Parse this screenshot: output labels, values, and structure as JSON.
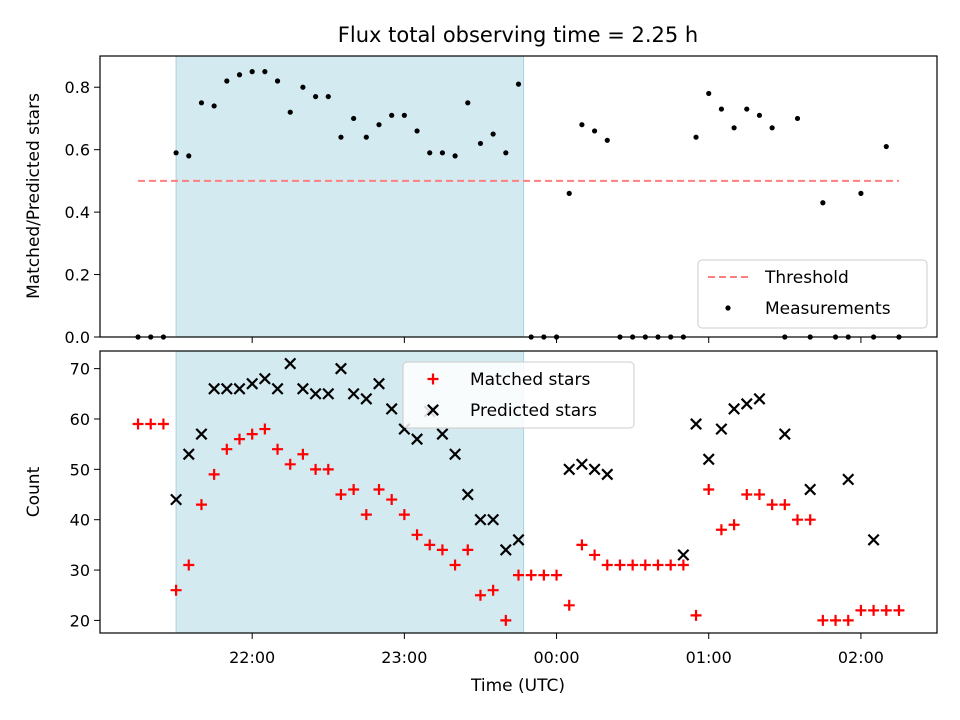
{
  "chart_data": [
    {
      "type": "scatter",
      "title": "Flux total observing time = 2.25 h",
      "xlabel": "",
      "ylabel": "Matched/Predicted stars",
      "xlim": [
        "21:00",
        "02:30"
      ],
      "ylim": [
        0,
        0.9
      ],
      "y_ticks": [
        0.0,
        0.2,
        0.4,
        0.6,
        0.8
      ],
      "y_tick_labels": [
        "0.0",
        "0.2",
        "0.4",
        "0.6",
        "0.8"
      ],
      "shaded_span": [
        "21:30",
        "23:47"
      ],
      "legend": "bottom-right",
      "grid": false,
      "threshold": {
        "name": "Threshold",
        "value": 0.5,
        "x_range": [
          "21:15",
          "02:15"
        ],
        "color": "#ff7f7f"
      },
      "series": [
        {
          "name": "Measurements",
          "color": "#000000",
          "marker": "dot",
          "x": [
            "21:15",
            "21:20",
            "21:25",
            "21:30",
            "21:35",
            "21:40",
            "21:45",
            "21:50",
            "21:55",
            "22:00",
            "22:05",
            "22:10",
            "22:15",
            "22:20",
            "22:25",
            "22:30",
            "22:35",
            "22:40",
            "22:45",
            "22:50",
            "22:55",
            "23:00",
            "23:05",
            "23:10",
            "23:15",
            "23:20",
            "23:25",
            "23:30",
            "23:35",
            "23:40",
            "23:45",
            "23:50",
            "23:55",
            "00:00",
            "00:05",
            "00:10",
            "00:15",
            "00:20",
            "00:25",
            "00:30",
            "00:35",
            "00:40",
            "00:45",
            "00:50",
            "00:55",
            "01:00",
            "01:05",
            "01:10",
            "01:15",
            "01:20",
            "01:25",
            "01:30",
            "01:35",
            "01:40",
            "01:45",
            "01:50",
            "01:55",
            "02:00",
            "02:05",
            "02:10",
            "02:15"
          ],
          "y": [
            0,
            0,
            0,
            0.59,
            0.58,
            0.75,
            0.74,
            0.82,
            0.84,
            0.85,
            0.85,
            0.82,
            0.72,
            0.8,
            0.77,
            0.77,
            0.64,
            0.7,
            0.64,
            0.68,
            0.71,
            0.71,
            0.66,
            0.59,
            0.59,
            0.58,
            0.75,
            0.62,
            0.65,
            0.59,
            0.81,
            0,
            0,
            0,
            0.46,
            0.68,
            0.66,
            0.63,
            0,
            0,
            0,
            0,
            0,
            0,
            0.64,
            0.78,
            0.73,
            0.67,
            0.73,
            0.71,
            0.67,
            0,
            0.7,
            0,
            0.43,
            0,
            0,
            0.46,
            0,
            0.61,
            0
          ]
        }
      ]
    },
    {
      "type": "scatter",
      "title": "",
      "xlabel": "Time (UTC)",
      "ylabel": "Count",
      "xlim": [
        "21:00",
        "02:30"
      ],
      "x_ticks": [
        "22:00",
        "23:00",
        "00:00",
        "01:00",
        "02:00"
      ],
      "ylim": [
        17.5,
        73.5
      ],
      "y_ticks": [
        20,
        30,
        40,
        50,
        60,
        70
      ],
      "y_tick_labels": [
        "20",
        "30",
        "40",
        "50",
        "60",
        "70"
      ],
      "shaded_span": [
        "21:30",
        "23:47"
      ],
      "legend": "top-center",
      "grid": false,
      "series": [
        {
          "name": "Matched stars",
          "color": "#ff0000",
          "marker": "plus",
          "x": [
            "21:15",
            "21:20",
            "21:25",
            "21:30",
            "21:35",
            "21:40",
            "21:45",
            "21:50",
            "21:55",
            "22:00",
            "22:05",
            "22:10",
            "22:15",
            "22:20",
            "22:25",
            "22:30",
            "22:35",
            "22:40",
            "22:45",
            "22:50",
            "22:55",
            "23:00",
            "23:05",
            "23:10",
            "23:15",
            "23:20",
            "23:25",
            "23:30",
            "23:35",
            "23:40",
            "23:45",
            "23:50",
            "23:55",
            "00:00",
            "00:05",
            "00:10",
            "00:15",
            "00:20",
            "00:25",
            "00:30",
            "00:35",
            "00:40",
            "00:45",
            "00:50",
            "00:55",
            "01:00",
            "01:05",
            "01:10",
            "01:15",
            "01:20",
            "01:25",
            "01:30",
            "01:35",
            "01:40",
            "01:45",
            "01:50",
            "01:55",
            "02:00",
            "02:05",
            "02:10",
            "02:15"
          ],
          "y": [
            59,
            59,
            59,
            26,
            31,
            43,
            49,
            54,
            56,
            57,
            58,
            54,
            51,
            53,
            50,
            50,
            45,
            46,
            41,
            46,
            44,
            41,
            37,
            35,
            34,
            31,
            34,
            25,
            26,
            20,
            29,
            29,
            29,
            29,
            23,
            35,
            33,
            31,
            31,
            31,
            31,
            31,
            31,
            31,
            21,
            46,
            38,
            39,
            45,
            45,
            43,
            43,
            40,
            40,
            20,
            20,
            20,
            22,
            22,
            22,
            22
          ]
        },
        {
          "name": "Predicted stars",
          "color": "#000000",
          "marker": "x",
          "x": [
            "21:30",
            "21:35",
            "21:40",
            "21:45",
            "21:50",
            "21:55",
            "22:00",
            "22:05",
            "22:10",
            "22:15",
            "22:20",
            "22:25",
            "22:30",
            "22:35",
            "22:40",
            "22:45",
            "22:50",
            "22:55",
            "23:00",
            "23:05",
            "23:10",
            "23:15",
            "23:20",
            "23:25",
            "23:30",
            "23:35",
            "23:40",
            "23:45",
            "00:05",
            "00:10",
            "00:15",
            "00:20",
            "00:50",
            "00:55",
            "01:00",
            "01:05",
            "01:10",
            "01:15",
            "01:20",
            "01:30",
            "01:40",
            "01:55",
            "02:05"
          ],
          "y": [
            44,
            53,
            57,
            66,
            66,
            66,
            67,
            68,
            66,
            71,
            66,
            65,
            65,
            70,
            65,
            64,
            67,
            62,
            58,
            56,
            61.5,
            57,
            53,
            45,
            40,
            40,
            34,
            36,
            50,
            51,
            50,
            49,
            33,
            59,
            52,
            58,
            62,
            63,
            64,
            57,
            46,
            48,
            36
          ]
        }
      ]
    }
  ]
}
